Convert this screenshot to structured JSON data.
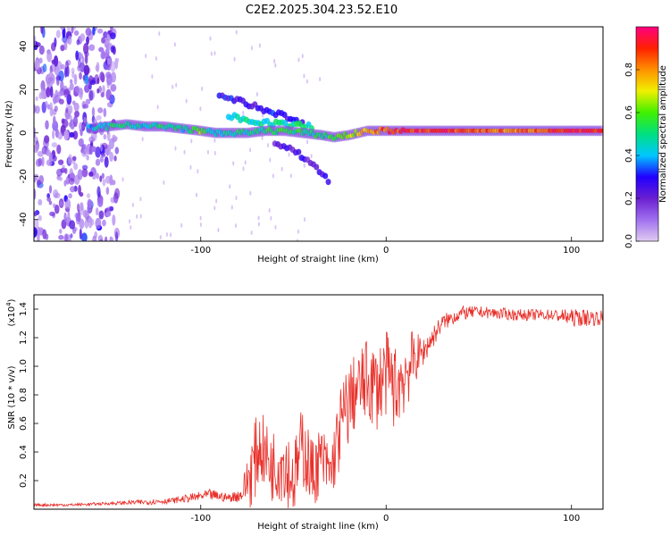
{
  "figure_title": "C2E2.2025.304.23.52.E10",
  "colors": {
    "snr_line": "#e8302a",
    "axis": "#000000",
    "background": "#ffffff",
    "colorbar_stops": [
      "#e0ccf0",
      "#a070f0",
      "#6a1fd0",
      "#2000ff",
      "#00c8ff",
      "#00e080",
      "#40f000",
      "#f0f000",
      "#ff9000",
      "#ff2000",
      "#ff0080"
    ]
  },
  "chart_data": [
    {
      "type": "heatmap",
      "title": "",
      "xlabel": "Height of straight line (km)",
      "ylabel": "Frequency (Hz)",
      "xlim": [
        -190,
        117
      ],
      "ylim": [
        -50,
        49
      ],
      "xticks": [
        -100,
        0,
        100
      ],
      "yticks": [
        -40,
        -20,
        0,
        20,
        40
      ],
      "colorbar": {
        "label": "Normalized spectral amplitude",
        "range": [
          0,
          1
        ],
        "ticks": [
          "0.0",
          "0.2",
          "0.4",
          "0.6",
          "0.8"
        ],
        "tick_values": [
          0.0,
          0.2,
          0.4,
          0.6,
          0.8
        ]
      },
      "ridge": {
        "x": [
          -160,
          -150,
          -140,
          -130,
          -120,
          -110,
          -100,
          -92,
          -85,
          -75,
          -65,
          -55,
          -45,
          -35,
          -28,
          -20,
          -10,
          0,
          10,
          30,
          50,
          70,
          90,
          110,
          117
        ],
        "frequency": [
          2,
          3,
          4,
          3,
          3,
          2,
          1,
          0,
          0,
          0,
          1,
          1,
          0,
          -1,
          -2,
          -1,
          1,
          1,
          1,
          1,
          1,
          1,
          1,
          1,
          1
        ],
        "amplitude": [
          0.4,
          0.45,
          0.5,
          0.45,
          0.5,
          0.45,
          0.6,
          0.4,
          0.5,
          0.45,
          0.5,
          0.55,
          0.5,
          0.5,
          0.55,
          0.6,
          0.8,
          0.85,
          0.9,
          0.9,
          0.85,
          0.8,
          0.9,
          0.9,
          0.85
        ]
      },
      "branches": [
        {
          "x": [
            -90,
            -80,
            -70,
            -55,
            -45
          ],
          "frequency": [
            17,
            15,
            12,
            8,
            4
          ],
          "amplitude": 0.2
        },
        {
          "x": [
            -60,
            -50,
            -40,
            -30
          ],
          "frequency": [
            -4,
            -8,
            -14,
            -23
          ],
          "amplitude": 0.15
        },
        {
          "x": [
            -85,
            -70,
            -55,
            -40
          ],
          "frequency": [
            8,
            5,
            4,
            3
          ],
          "amplitude": 0.4
        }
      ],
      "noise_region": {
        "x": [
          -190,
          -145
        ],
        "frequency": [
          -50,
          49
        ],
        "amplitude": 0.2
      }
    },
    {
      "type": "line",
      "title": "",
      "xlabel": "Height of straight line (km)",
      "ylabel": "SNR (10 * v/v)",
      "y_multiplier_label": "(x10",
      "y_multiplier_exp": "4",
      "y_multiplier_close": ")",
      "xlim": [
        -190,
        117
      ],
      "ylim": [
        0,
        1.5
      ],
      "xticks": [
        -100,
        0,
        100
      ],
      "yticks": [
        0.2,
        0.4,
        0.6,
        0.8,
        1.0,
        1.2,
        1.4
      ],
      "ytick_labels": [
        "0.2",
        "0.4",
        "0.6",
        "0.8",
        "1.0",
        "1.2",
        "1.4"
      ],
      "series": [
        {
          "name": "SNR",
          "x": [
            -190,
            -170,
            -150,
            -130,
            -115,
            -105,
            -95,
            -85,
            -78,
            -72,
            -68,
            -62,
            -55,
            -50,
            -45,
            -40,
            -35,
            -30,
            -25,
            -20,
            -15,
            -10,
            -5,
            0,
            5,
            10,
            15,
            20,
            25,
            30,
            40,
            50,
            60,
            70,
            80,
            90,
            95,
            100,
            110,
            117
          ],
          "values": [
            0.03,
            0.03,
            0.04,
            0.05,
            0.06,
            0.08,
            0.1,
            0.08,
            0.1,
            0.3,
            0.45,
            0.3,
            0.35,
            0.2,
            0.45,
            0.25,
            0.35,
            0.25,
            0.55,
            0.75,
            0.85,
            0.9,
            0.85,
            0.95,
            0.85,
            0.95,
            1.05,
            1.1,
            1.2,
            1.3,
            1.37,
            1.38,
            1.37,
            1.36,
            1.36,
            1.36,
            1.35,
            1.34,
            1.34,
            1.34
          ],
          "spread": [
            0.01,
            0.01,
            0.01,
            0.02,
            0.02,
            0.03,
            0.04,
            0.03,
            0.05,
            0.3,
            0.25,
            0.25,
            0.3,
            0.25,
            0.3,
            0.25,
            0.25,
            0.2,
            0.3,
            0.3,
            0.25,
            0.3,
            0.3,
            0.3,
            0.3,
            0.3,
            0.2,
            0.1,
            0.08,
            0.06,
            0.05,
            0.04,
            0.04,
            0.04,
            0.04,
            0.04,
            0.05,
            0.06,
            0.06,
            0.05
          ]
        }
      ]
    }
  ]
}
